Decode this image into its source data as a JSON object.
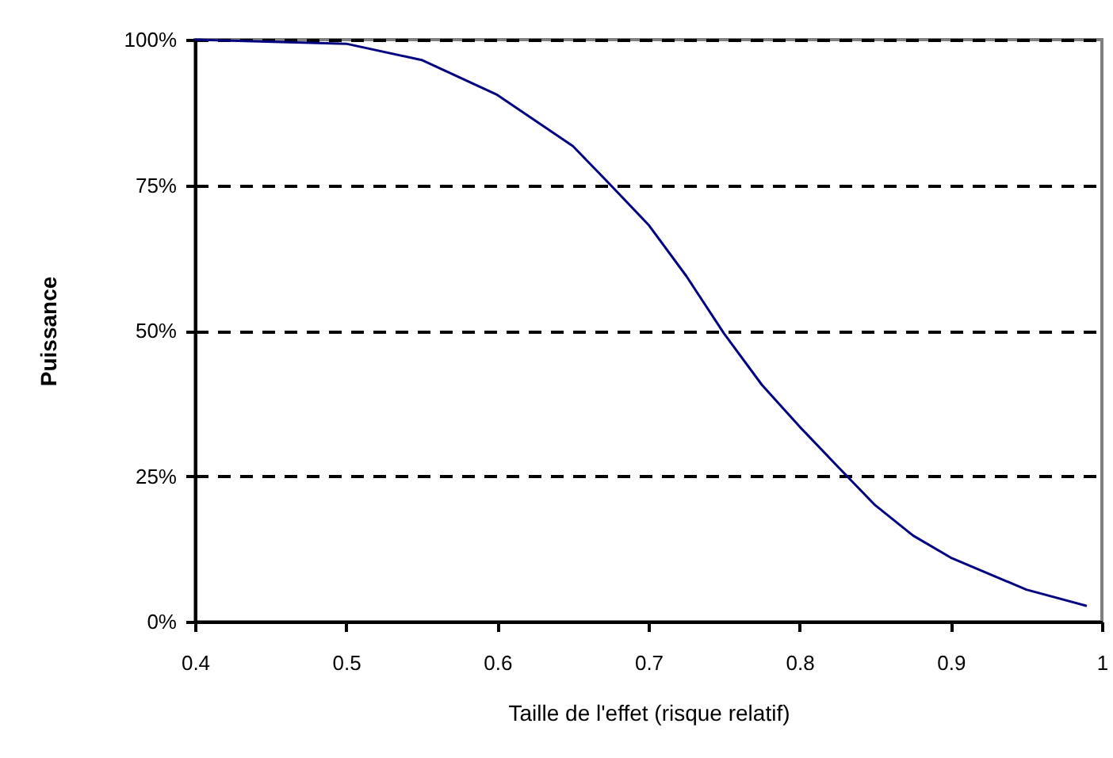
{
  "chart_data": {
    "type": "line",
    "xlabel": "Taille de l'effet (risque relatif)",
    "ylabel": "Puissance",
    "x": [
      0.4,
      0.5,
      0.55,
      0.6,
      0.65,
      0.675,
      0.7,
      0.725,
      0.75,
      0.775,
      0.8,
      0.825,
      0.85,
      0.875,
      0.9,
      0.95,
      0.99
    ],
    "series": [
      {
        "color": "#000080",
        "values": [
          100,
          99.3,
          96.5,
          90.5,
          81.7,
          75,
          68.2,
          59.4,
          49.5,
          40.7,
          33.5,
          26.7,
          20,
          14.8,
          11,
          5.5,
          2.7
        ]
      }
    ],
    "xlim": [
      0.4,
      1
    ],
    "xticks": [
      0.4,
      0.5,
      0.6,
      0.7,
      0.8,
      0.9,
      1
    ],
    "ylim": [
      0,
      100
    ],
    "yticks": [
      {
        "value": 0,
        "label": "0%"
      },
      {
        "value": 25,
        "label": "25%"
      },
      {
        "value": 50,
        "label": "50%"
      },
      {
        "value": 75,
        "label": "75%"
      },
      {
        "value": 100,
        "label": "100%"
      }
    ],
    "grid": "y",
    "line_style": "solid",
    "marker": "none"
  }
}
